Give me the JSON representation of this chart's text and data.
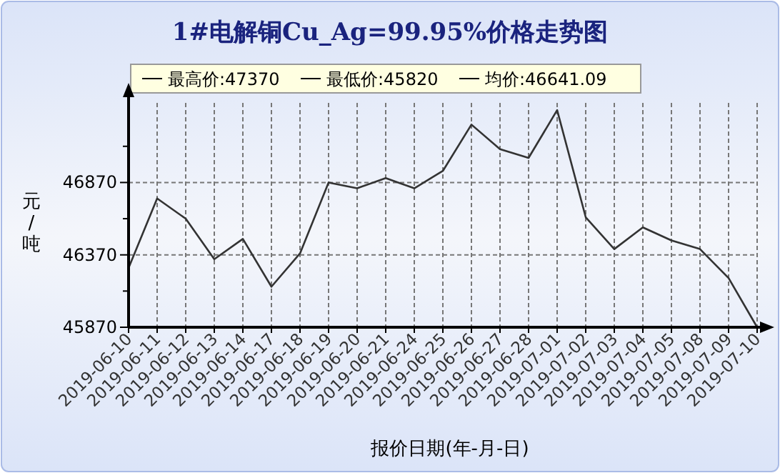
{
  "chart_data": {
    "type": "line",
    "title": "1#电解铜Cu_Ag=99.95%价格走势图",
    "ylabel": "元/吨",
    "xlabel": "报价日期(年-月-日)",
    "annotations": [
      "最高价:47370",
      "最低价:45820",
      "均价:46641.09"
    ],
    "categories": [
      "2019-06-10",
      "2019-06-11",
      "2019-06-12",
      "2019-06-13",
      "2019-06-14",
      "2019-06-17",
      "2019-06-18",
      "2019-06-19",
      "2019-06-20",
      "2019-06-21",
      "2019-06-24",
      "2019-06-25",
      "2019-06-26",
      "2019-06-27",
      "2019-06-28",
      "2019-07-01",
      "2019-07-02",
      "2019-07-03",
      "2019-07-04",
      "2019-07-05",
      "2019-07-08",
      "2019-07-09",
      "2019-07-10"
    ],
    "series": [
      {
        "color": "#333333",
        "values": [
          46280,
          46760,
          46620,
          46340,
          46480,
          46150,
          46380,
          46870,
          46830,
          46900,
          46830,
          46950,
          47270,
          47100,
          47040,
          47370,
          46630,
          46410,
          46560,
          46470,
          46410,
          46210,
          45870
        ]
      }
    ],
    "ylim": [
      45870,
      47420
    ],
    "yticks": [
      45870,
      {
        "value": 46120,
        "label": null
      },
      46370,
      {
        "value": 46620,
        "label": null
      },
      46870,
      {
        "value": 47120,
        "label": null
      }
    ],
    "grid": true,
    "marker": "none",
    "line_style": "solid"
  }
}
